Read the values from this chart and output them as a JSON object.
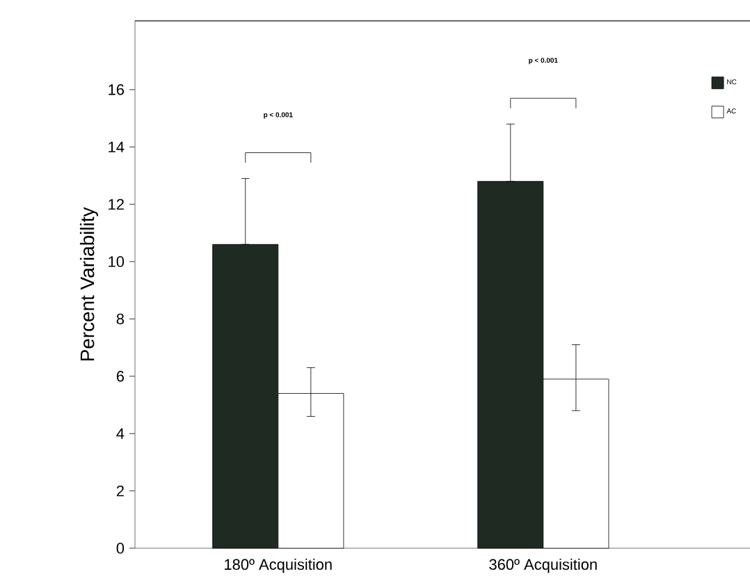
{
  "chart_data": {
    "type": "bar",
    "ylabel": "Percent Variability",
    "categories": [
      "180º Acquisition",
      "360º Acquisition"
    ],
    "series": [
      {
        "name": "NC",
        "color": "#1f2a22",
        "values": [
          10.6,
          12.8
        ],
        "errors": [
          [
            10.6,
            12.9
          ],
          [
            12.8,
            14.8
          ]
        ]
      },
      {
        "name": "AC",
        "color": "#ffffff",
        "values": [
          5.4,
          5.9
        ],
        "errors": [
          [
            4.6,
            6.3
          ],
          [
            4.8,
            7.1
          ]
        ]
      }
    ],
    "ylim": [
      0,
      18.4
    ],
    "yticks": [
      0,
      2,
      4,
      6,
      8,
      10,
      12,
      14,
      16
    ],
    "legend": "top right",
    "grid": false,
    "annotations": [
      "p < 0.001",
      "p < 0.001"
    ]
  }
}
